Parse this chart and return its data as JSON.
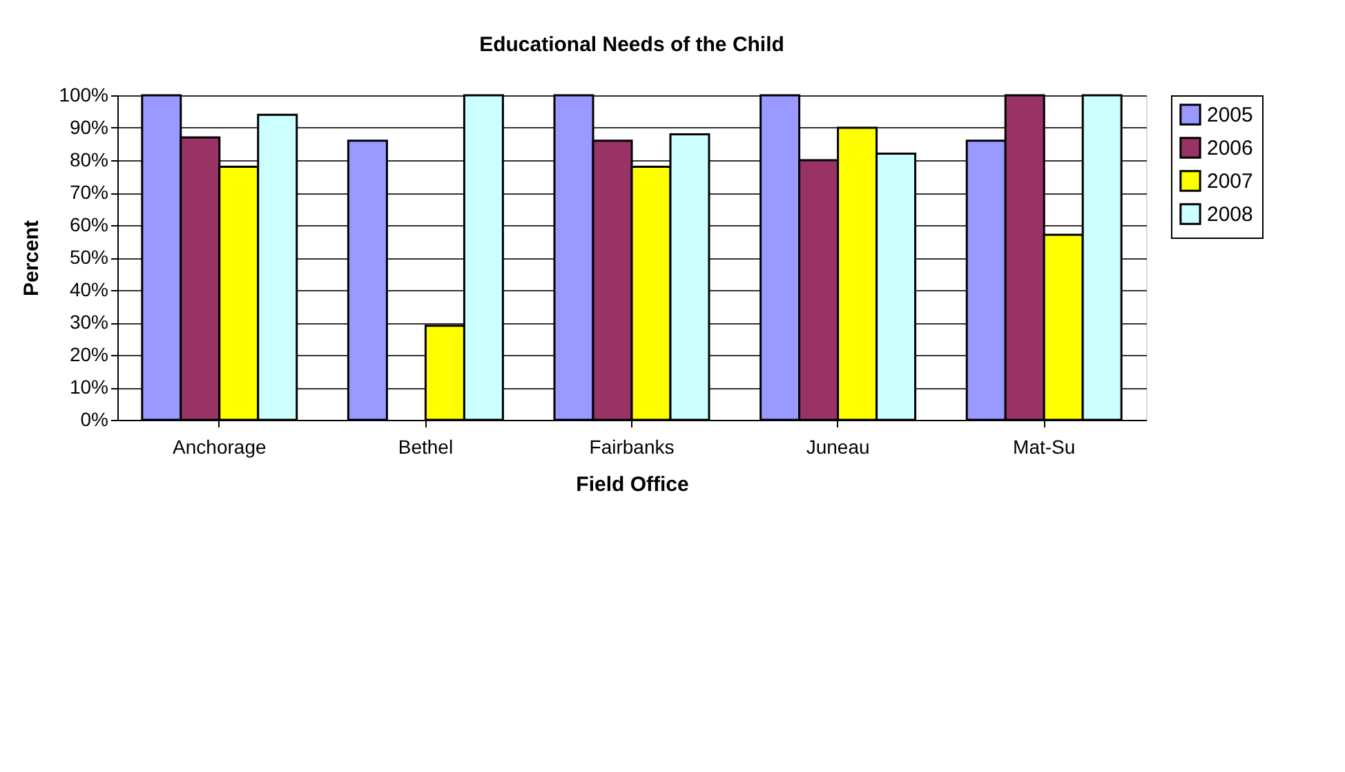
{
  "chart_data": {
    "type": "bar",
    "title": "Educational Needs of the Child",
    "xlabel": "Field Office",
    "ylabel": "Percent",
    "categories": [
      "Anchorage",
      "Bethel",
      "Fairbanks",
      "Juneau",
      "Mat-Su"
    ],
    "series": [
      {
        "name": "2005",
        "color": "#9999ff",
        "values": [
          100,
          86,
          100,
          100,
          86
        ]
      },
      {
        "name": "2006",
        "color": "#993366",
        "values": [
          87,
          null,
          86,
          80,
          100
        ]
      },
      {
        "name": "2007",
        "color": "#ffff00",
        "values": [
          78,
          29,
          78,
          90,
          57
        ]
      },
      {
        "name": "2008",
        "color": "#ccffff",
        "values": [
          94,
          100,
          88,
          82,
          100
        ]
      }
    ],
    "ylim": [
      0,
      100
    ],
    "yticks": [
      {
        "value": 0,
        "label": "0%"
      },
      {
        "value": 10,
        "label": "10%"
      },
      {
        "value": 20,
        "label": "20%"
      },
      {
        "value": 30,
        "label": "30%"
      },
      {
        "value": 40,
        "label": "40%"
      },
      {
        "value": 50,
        "label": "50%"
      },
      {
        "value": 60,
        "label": "60%"
      },
      {
        "value": 70,
        "label": "70%"
      },
      {
        "value": 80,
        "label": "80%"
      },
      {
        "value": 90,
        "label": "90%"
      },
      {
        "value": 100,
        "label": "100%"
      }
    ],
    "grid": "y",
    "legend": "right"
  }
}
